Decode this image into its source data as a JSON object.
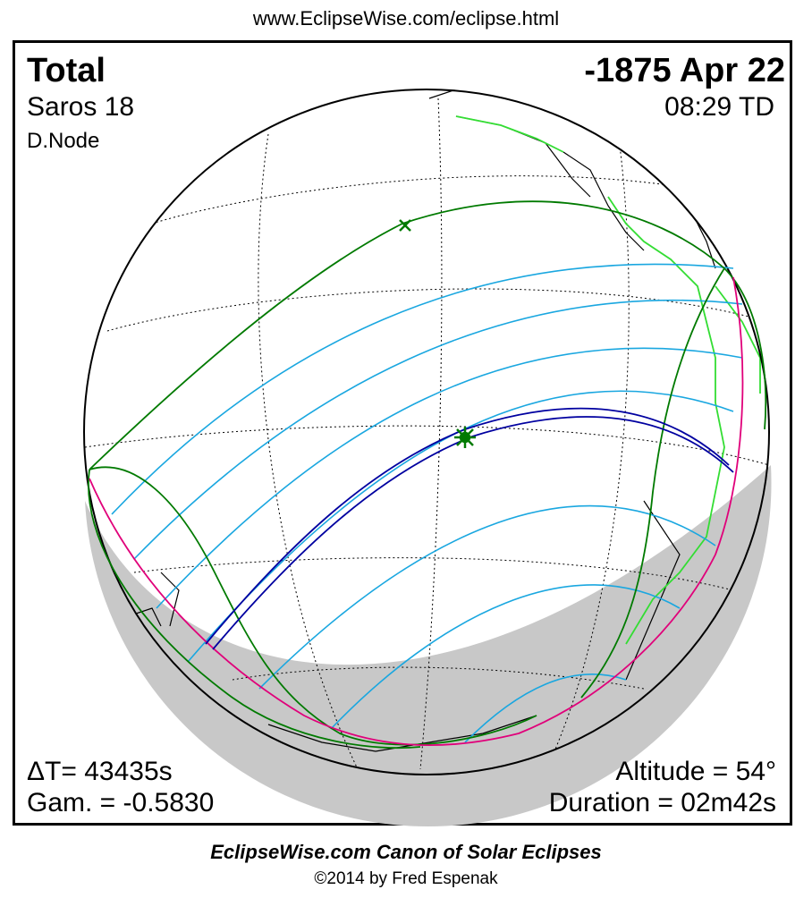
{
  "header": {
    "url": "www.EclipseWise.com/eclipse.html"
  },
  "eclipse": {
    "type": "Total",
    "date": "-1875 Apr 22",
    "saros": "Saros  18",
    "time": "08:29 TD",
    "node": "D.Node",
    "delta_t": "ΔT=  43435s",
    "gamma": "Gam. = -0.5830",
    "altitude": "Altitude = 54°",
    "duration": "Duration = 02m42s"
  },
  "footer": {
    "title": "EclipseWise.com Canon of Solar Eclipses",
    "copyright": "©2014 by Fred Espenak"
  },
  "colors": {
    "penumbra_limits": "#007a00",
    "partial_lines": "#1aa7e0",
    "central_path": "#0000a0",
    "terminator": "#e0007a",
    "coastlines": "#000000",
    "coast_highlight": "#33dd33",
    "night_shade": "#c8c8c8"
  },
  "markers": {
    "greatest_eclipse": "green-star",
    "first_contact": "green-x"
  }
}
